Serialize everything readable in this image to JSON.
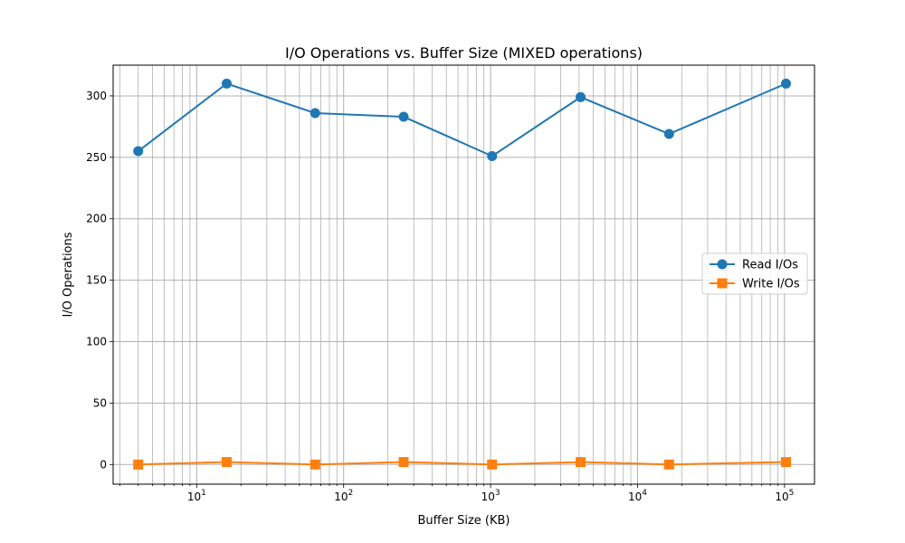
{
  "chart_data": {
    "type": "line",
    "title": "I/O Operations vs. Buffer Size (MIXED operations)",
    "xlabel": "Buffer Size (KB)",
    "ylabel": "I/O Operations",
    "xscale": "log",
    "xlim": [
      2.7,
      160000
    ],
    "ylim": [
      -16,
      325
    ],
    "grid": "both (major and minor on x)",
    "legend_position": "center-right",
    "x": [
      4,
      16,
      64,
      256,
      1024,
      4096,
      16384,
      102400
    ],
    "series": [
      {
        "name": "Read I/Os",
        "color": "#1f77b4",
        "marker": "circle",
        "values": [
          255,
          310,
          286,
          283,
          251,
          299,
          269,
          310
        ]
      },
      {
        "name": "Write I/Os",
        "color": "#ff7f0e",
        "marker": "square",
        "values": [
          0,
          2,
          0,
          2,
          0,
          2,
          0,
          2
        ]
      }
    ],
    "y_ticks": [
      "0",
      "50",
      "100",
      "150",
      "200",
      "250",
      "300"
    ],
    "x_ticks": [
      {
        "value": 10,
        "mantissa": "10",
        "exponent": "1"
      },
      {
        "value": 100,
        "mantissa": "10",
        "exponent": "2"
      },
      {
        "value": 1000,
        "mantissa": "10",
        "exponent": "3"
      },
      {
        "value": 10000,
        "mantissa": "10",
        "exponent": "4"
      },
      {
        "value": 100000,
        "mantissa": "10",
        "exponent": "5"
      }
    ]
  }
}
